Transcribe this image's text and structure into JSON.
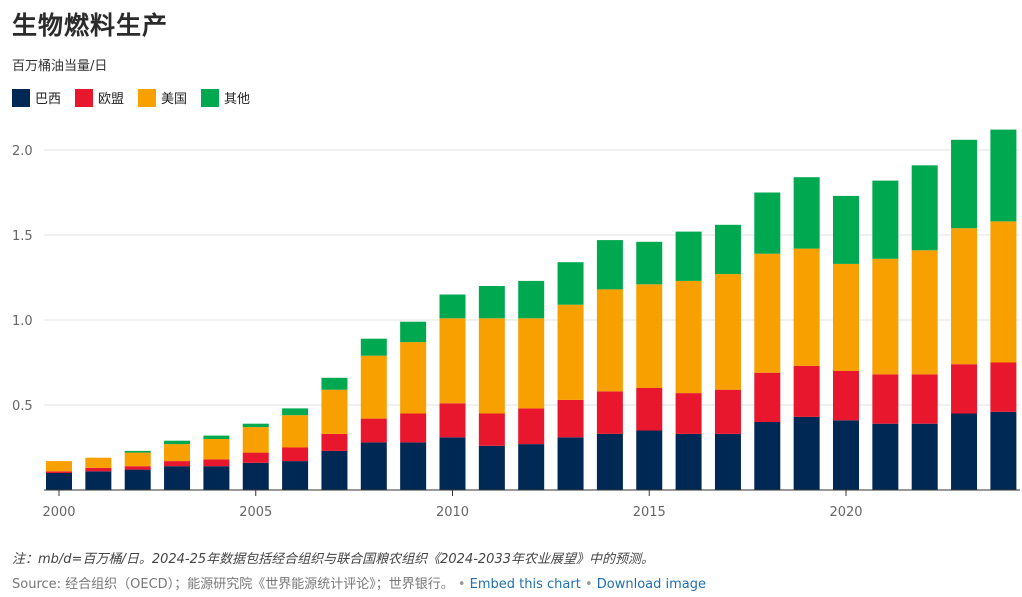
{
  "header": {
    "title": "生物燃料生产",
    "subtitle": "百万桶油当量/日"
  },
  "footer": {
    "note": "注：mb/d=百万桶/日。2024-25年数据包括经合组织与联合国粮农组织《2024-2033年农业展望》中的预测。",
    "source": "Source: 经合组织（OECD）；能源研究院《世界能源统计评论》；世界银行。",
    "bullet": "•",
    "embed_link": "Embed this chart",
    "download_link": "Download image"
  },
  "colors": {
    "brazil": "#002855",
    "eu": "#e8172d",
    "us": "#f7a000",
    "other": "#00a84f"
  },
  "chart_data": {
    "type": "bar",
    "stacked": true,
    "categories": [
      "2000",
      "2001",
      "2002",
      "2003",
      "2004",
      "2005",
      "2006",
      "2007",
      "2008",
      "2009",
      "2010",
      "2011",
      "2012",
      "2013",
      "2014",
      "2015",
      "2016",
      "2017",
      "2018",
      "2019",
      "2020",
      "2021",
      "2022",
      "2023",
      "2024"
    ],
    "x_ticks": [
      "2000",
      "2005",
      "2010",
      "2015",
      "2020"
    ],
    "y_ticks": [
      "0.5",
      "1.0",
      "1.5",
      "2.0"
    ],
    "ylim": [
      0,
      2.2
    ],
    "grid": true,
    "legend_position": "top-left",
    "series": [
      {
        "name": "巴西",
        "color": "#002855",
        "values": [
          0.1,
          0.11,
          0.12,
          0.14,
          0.14,
          0.16,
          0.17,
          0.23,
          0.28,
          0.28,
          0.31,
          0.26,
          0.27,
          0.31,
          0.33,
          0.35,
          0.33,
          0.33,
          0.4,
          0.43,
          0.41,
          0.39,
          0.39,
          0.45,
          0.46
        ]
      },
      {
        "name": "欧盟",
        "color": "#e8172d",
        "values": [
          0.01,
          0.02,
          0.02,
          0.03,
          0.04,
          0.06,
          0.08,
          0.1,
          0.14,
          0.17,
          0.2,
          0.19,
          0.21,
          0.22,
          0.25,
          0.25,
          0.24,
          0.26,
          0.29,
          0.3,
          0.29,
          0.29,
          0.29,
          0.29,
          0.29
        ]
      },
      {
        "name": "美国",
        "color": "#f7a000",
        "values": [
          0.06,
          0.06,
          0.08,
          0.1,
          0.12,
          0.15,
          0.19,
          0.26,
          0.37,
          0.42,
          0.5,
          0.56,
          0.53,
          0.56,
          0.6,
          0.61,
          0.66,
          0.68,
          0.7,
          0.69,
          0.63,
          0.68,
          0.73,
          0.8,
          0.83
        ]
      },
      {
        "name": "其他",
        "color": "#00a84f",
        "values": [
          0.0,
          0.0,
          0.01,
          0.02,
          0.02,
          0.02,
          0.04,
          0.07,
          0.1,
          0.12,
          0.14,
          0.19,
          0.22,
          0.25,
          0.29,
          0.25,
          0.29,
          0.29,
          0.36,
          0.42,
          0.4,
          0.46,
          0.5,
          0.52,
          0.54
        ]
      }
    ]
  }
}
